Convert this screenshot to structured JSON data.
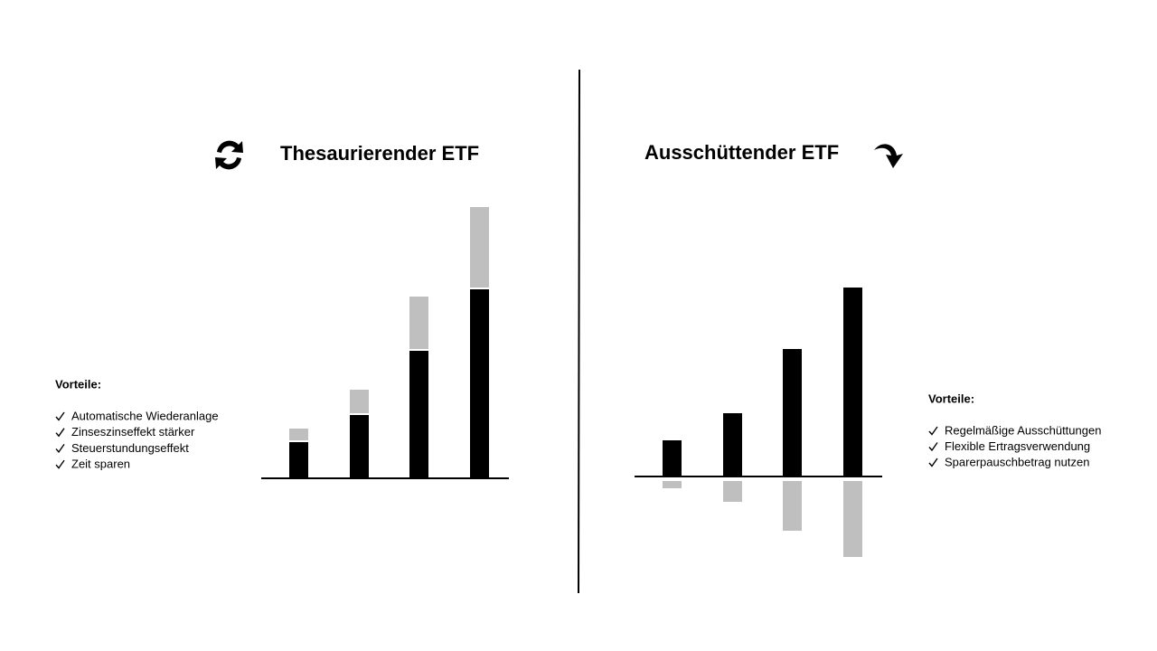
{
  "chart_data": [
    {
      "type": "bar",
      "stacked": true,
      "title": "Thesaurierender ETF",
      "series": [
        {
          "color": "#000000",
          "values": [
            40,
            70,
            141,
            209
          ]
        },
        {
          "color": "#bfbfbf",
          "values": [
            15,
            28,
            60,
            91
          ]
        }
      ],
      "ylim": [
        0,
        305
      ]
    },
    {
      "type": "bar",
      "stacked": true,
      "title": "Ausschüttender ETF",
      "series": [
        {
          "color": "#000000",
          "values": [
            40,
            70,
            141,
            209
          ]
        },
        {
          "color": "#bfbfbf",
          "values": [
            -13,
            -28,
            -60,
            -89
          ]
        }
      ],
      "ylim": [
        -95,
        215
      ]
    }
  ],
  "panels": [
    {
      "heading": "Vorteile:",
      "items": [
        "Automatische Wiederanlage",
        "Zinseszinseffekt stärker",
        "Steuerstundungseffekt",
        "Zeit sparen"
      ]
    },
    {
      "heading": "Vorteile:",
      "items": [
        "Regelmäßige Ausschüttungen",
        "Flexible Ertragsverwendung",
        "Sparerpauschbetrag nutzen"
      ]
    }
  ]
}
